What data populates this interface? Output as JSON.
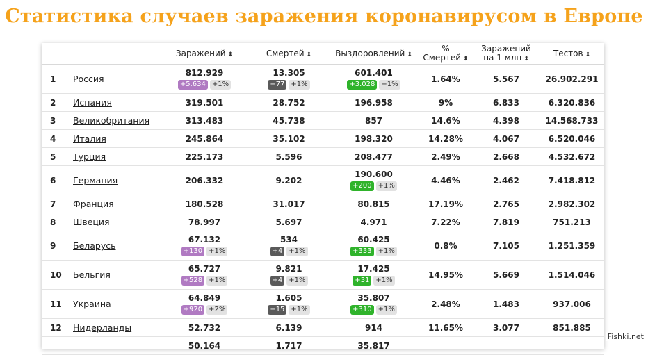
{
  "title": "Статистика случаев заражения коронавирусом в Европе",
  "watermark": "Fishki.net",
  "colors": {
    "title": "#f5a21b",
    "cases_delta": "#b07ac2",
    "deaths_delta": "#5a5a5a",
    "recovered_delta": "#2fb32b"
  },
  "sort_icon": "sort-arrows-icon",
  "headers": {
    "cases": "Заражений",
    "deaths": "Смертей",
    "recovered": "Выздоровлений",
    "pct_line1": "%",
    "pct_line2": "Смертей",
    "per_mln_line1": "Заражений",
    "per_mln_line2": "на 1 млн",
    "tests": "Тестов"
  },
  "rows": [
    {
      "n": "1",
      "country": "Россия",
      "cases": "812.929",
      "cases_delta": "+5.634",
      "cases_pct": "+1%",
      "deaths": "13.305",
      "deaths_delta": "+77",
      "deaths_pct": "+1%",
      "recovered": "601.401",
      "recovered_delta": "+3.028",
      "recovered_pct": "+1%",
      "death_rate": "1.64%",
      "per_mln": "5.567",
      "tests": "26.902.291"
    },
    {
      "n": "2",
      "country": "Испания",
      "cases": "319.501",
      "deaths": "28.752",
      "recovered": "196.958",
      "death_rate": "9%",
      "per_mln": "6.833",
      "tests": "6.320.836"
    },
    {
      "n": "3",
      "country": "Великобритания",
      "cases": "313.483",
      "deaths": "45.738",
      "recovered": "857",
      "death_rate": "14.6%",
      "per_mln": "4.398",
      "tests": "14.568.733"
    },
    {
      "n": "4",
      "country": "Италия",
      "cases": "245.864",
      "deaths": "35.102",
      "recovered": "198.320",
      "death_rate": "14.28%",
      "per_mln": "4.067",
      "tests": "6.520.046"
    },
    {
      "n": "5",
      "country": "Турция",
      "cases": "225.173",
      "deaths": "5.596",
      "recovered": "208.477",
      "death_rate": "2.49%",
      "per_mln": "2.668",
      "tests": "4.532.672"
    },
    {
      "n": "6",
      "country": "Германия",
      "cases": "206.332",
      "deaths": "9.202",
      "recovered": "190.600",
      "recovered_delta": "+200",
      "recovered_pct": "+1%",
      "death_rate": "4.46%",
      "per_mln": "2.462",
      "tests": "7.418.812"
    },
    {
      "n": "7",
      "country": "Франция",
      "cases": "180.528",
      "deaths": "31.017",
      "recovered": "80.815",
      "death_rate": "17.19%",
      "per_mln": "2.765",
      "tests": "2.982.302"
    },
    {
      "n": "8",
      "country": "Швеция",
      "cases": "78.997",
      "deaths": "5.697",
      "recovered": "4.971",
      "death_rate": "7.22%",
      "per_mln": "7.819",
      "tests": "751.213"
    },
    {
      "n": "9",
      "country": "Беларусь",
      "cases": "67.132",
      "cases_delta": "+130",
      "cases_pct": "+1%",
      "deaths": "534",
      "deaths_delta": "+4",
      "deaths_pct": "+1%",
      "recovered": "60.425",
      "recovered_delta": "+333",
      "recovered_pct": "+1%",
      "death_rate": "0.8%",
      "per_mln": "7.105",
      "tests": "1.251.359"
    },
    {
      "n": "10",
      "country": "Бельгия",
      "cases": "65.727",
      "cases_delta": "+528",
      "cases_pct": "+1%",
      "deaths": "9.821",
      "deaths_delta": "+4",
      "deaths_pct": "+1%",
      "recovered": "17.425",
      "recovered_delta": "+31",
      "recovered_pct": "+1%",
      "death_rate": "14.95%",
      "per_mln": "5.669",
      "tests": "1.514.046"
    },
    {
      "n": "11",
      "country": "Украина",
      "cases": "64.849",
      "cases_delta": "+920",
      "cases_pct": "+2%",
      "deaths": "1.605",
      "deaths_delta": "+15",
      "deaths_pct": "+1%",
      "recovered": "35.807",
      "recovered_delta": "+310",
      "recovered_pct": "+1%",
      "death_rate": "2.48%",
      "per_mln": "1.483",
      "tests": "937.006"
    },
    {
      "n": "12",
      "country": "Нидерланды",
      "cases": "52.732",
      "deaths": "6.139",
      "recovered": "914",
      "death_rate": "11.65%",
      "per_mln": "3.077",
      "tests": "851.885"
    },
    {
      "n": "",
      "country": "",
      "cases": "50.164",
      "deaths": "1.717",
      "recovered": "35.817",
      "death_rate": "",
      "per_mln": "",
      "tests": ""
    }
  ]
}
